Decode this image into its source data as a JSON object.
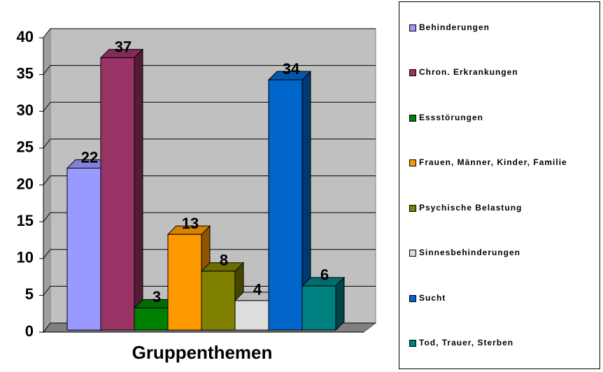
{
  "chart_data": {
    "type": "bar",
    "xlabel": "Gruppenthemen",
    "series": [
      {
        "name": "Behinderungen",
        "color": "#9999FF",
        "values": [
          22
        ]
      },
      {
        "name": "Chron. Erkrankungen",
        "color": "#993366",
        "values": [
          37
        ]
      },
      {
        "name": "Essstörungen",
        "color": "#008000",
        "values": [
          3
        ]
      },
      {
        "name": "Frauen, Männer, Kinder, Familie",
        "color": "#FF9900",
        "values": [
          13
        ]
      },
      {
        "name": "Psychische Belastung",
        "color": "#808000",
        "values": [
          8
        ]
      },
      {
        "name": "Sinnesbehinderungen",
        "color": "#DDDDDD",
        "values": [
          4
        ]
      },
      {
        "name": "Sucht",
        "color": "#0066CC",
        "values": [
          34
        ]
      },
      {
        "name": "Tod, Trauer, Sterben",
        "color": "#008080",
        "values": [
          6
        ]
      }
    ],
    "ylim": [
      0,
      40
    ],
    "yticks": [
      0,
      5,
      10,
      15,
      20,
      25,
      30,
      35,
      40
    ],
    "grid": true,
    "legend": "right"
  }
}
